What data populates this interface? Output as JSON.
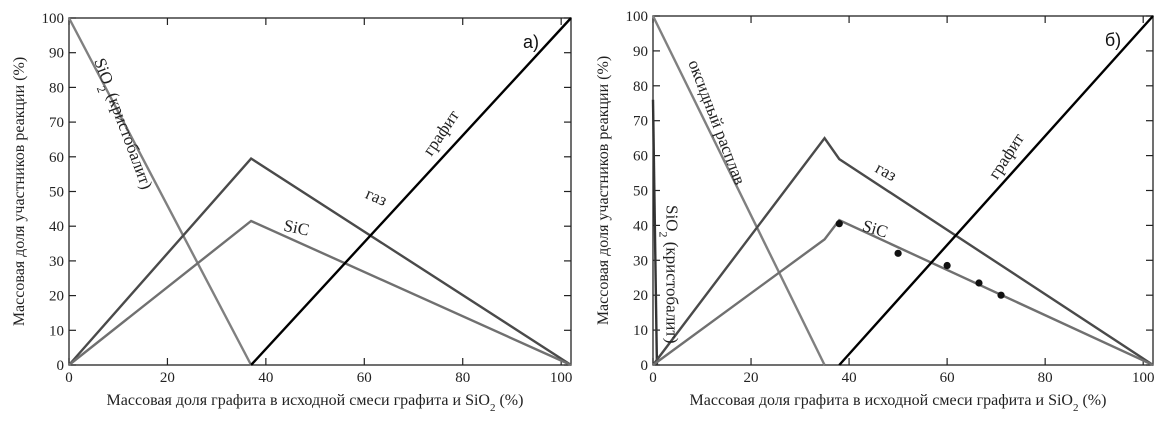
{
  "chart_data": [
    {
      "type": "line",
      "panel_label": "а)",
      "xlabel": "Массовая доля графита в исходной смеси графита  и  SiO₂ (%)",
      "ylabel": "Массовая доля участников реакции (%)",
      "xlim": [
        0,
        102
      ],
      "ylim": [
        0,
        100
      ],
      "xticks": [
        0,
        20,
        40,
        60,
        80,
        100
      ],
      "yticks": [
        0,
        10,
        20,
        30,
        40,
        50,
        60,
        70,
        80,
        90,
        100
      ],
      "series": [
        {
          "name": "SiO₂ (кристобалит)",
          "color": "#808080",
          "points": [
            [
              0,
              100
            ],
            [
              37,
              0
            ]
          ]
        },
        {
          "name": "газ",
          "color": "#4a4a4a",
          "points": [
            [
              0,
              0
            ],
            [
              37,
              59.5
            ],
            [
              102,
              0
            ]
          ]
        },
        {
          "name": "SiC",
          "color": "#707070",
          "points": [
            [
              0,
              0
            ],
            [
              37,
              41.5
            ],
            [
              102,
              0
            ]
          ]
        },
        {
          "name": "графит",
          "color": "#000000",
          "points": [
            [
              37,
              0
            ],
            [
              102,
              100
            ]
          ]
        }
      ],
      "markers": []
    },
    {
      "type": "line",
      "panel_label": "б)",
      "xlabel": "Массовая доля графита в исходной смеси графита  и  SiO₂ (%)",
      "ylabel": "Массовая доля участников реакции (%)",
      "xlim": [
        0,
        102
      ],
      "ylim": [
        0,
        100
      ],
      "xticks": [
        0,
        20,
        40,
        60,
        80,
        100
      ],
      "yticks": [
        0,
        10,
        20,
        30,
        40,
        50,
        60,
        70,
        80,
        90,
        100
      ],
      "series": [
        {
          "name": "оксидный расплав",
          "color": "#808080",
          "points": [
            [
              0,
              100
            ],
            [
              35,
              0
            ]
          ]
        },
        {
          "name": "SiO₂ (кристобалит)",
          "color": "#333333",
          "points": [
            [
              0,
              76
            ],
            [
              0.8,
              0
            ]
          ]
        },
        {
          "name": "газ",
          "color": "#4a4a4a",
          "points": [
            [
              0,
              0
            ],
            [
              35,
              65
            ],
            [
              38,
              59
            ],
            [
              102,
              0
            ]
          ]
        },
        {
          "name": "SiC",
          "color": "#707070",
          "points": [
            [
              0,
              0
            ],
            [
              35,
              36
            ],
            [
              38,
              41.5
            ],
            [
              102,
              0
            ]
          ]
        },
        {
          "name": "графит",
          "color": "#000000",
          "points": [
            [
              38,
              0
            ],
            [
              102,
              100
            ]
          ]
        }
      ],
      "markers": [
        [
          38,
          40.5
        ],
        [
          50,
          32
        ],
        [
          60,
          28.5
        ],
        [
          66.5,
          23.5
        ],
        [
          71,
          20
        ]
      ]
    }
  ]
}
